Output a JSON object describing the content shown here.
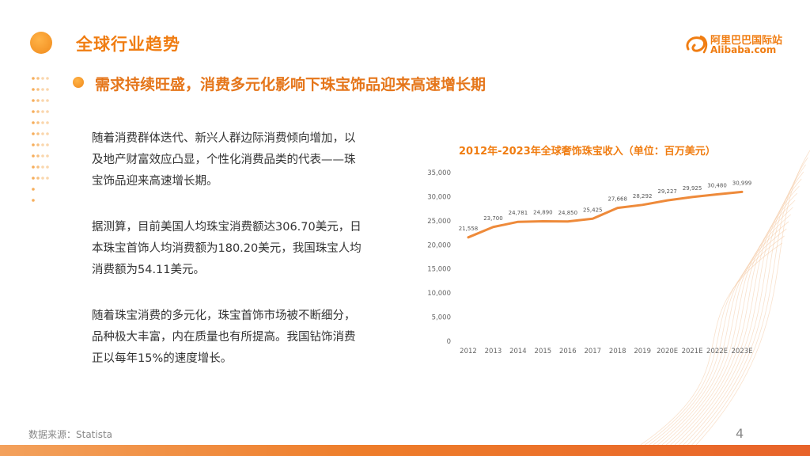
{
  "header": {
    "title": "全球行业趋势",
    "subtitle": "需求持续旺盛，消费多元化影响下珠宝饰品迎来高速增长期"
  },
  "logo": {
    "name_cn": "阿里巴巴国际站",
    "name_en": "Alibaba.com"
  },
  "paragraphs": [
    [
      "随着消费群体迭代、新兴人群边际消费倾向增加，以",
      "及地产财富效应凸显，个性化消费品类的代表——珠",
      "宝饰品迎来高速增长期。"
    ],
    [
      "据测算，目前美国人均珠宝消费额达306.70美元，日",
      "本珠宝首饰人均消费额为180.20美元，我国珠宝人均",
      "消费额为54.11美元。"
    ],
    [
      "随着珠宝消费的多元化，珠宝首饰市场被不断细分，",
      "品种极大丰富，内在质量也有所提高。我国钻饰消费",
      "正以每年15%的速度增长。"
    ]
  ],
  "footer": {
    "source": "数据来源：Statista",
    "page_number": "4"
  },
  "colors": {
    "accent": "#f07d12",
    "line": "#ee8a3a",
    "axis_text": "#666666"
  },
  "chart_data": {
    "type": "line",
    "title": "2012年-2023年全球奢饰珠宝收入（单位：百万美元）",
    "categories": [
      "2012",
      "2013",
      "2014",
      "2015",
      "2016",
      "2017",
      "2018",
      "2019",
      "2020E",
      "2021E",
      "2022E",
      "2023E"
    ],
    "values": [
      21558,
      23700,
      24781,
      24890,
      24850,
      25425,
      27668,
      28292,
      29227,
      29925,
      30480,
      30999
    ],
    "value_labels": [
      "21,558",
      "23,700",
      "24,781",
      "24,890",
      "24,850",
      "25,425",
      "27,668",
      "28,292",
      "29,227",
      "29,925",
      "30,480",
      "30,999"
    ],
    "ylim": [
      0,
      35000
    ],
    "yticks": [
      0,
      5000,
      10000,
      15000,
      20000,
      25000,
      30000,
      35000
    ],
    "ytick_labels": [
      "0",
      "5,000",
      "10,000",
      "15,000",
      "20,000",
      "25,000",
      "30,000",
      "35,000"
    ],
    "xlabel": "",
    "ylabel": "",
    "grid": false,
    "legend": "none"
  }
}
